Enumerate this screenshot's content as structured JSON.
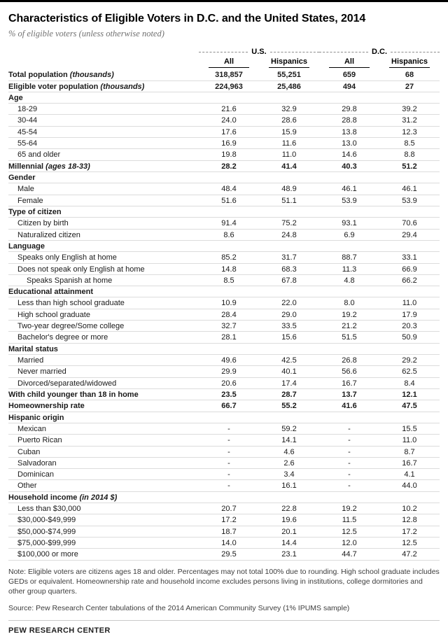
{
  "chart_data": {
    "type": "table",
    "title": "Characteristics of Eligible Voters in D.C. and the United States, 2014",
    "subtitle": "% of eligible voters (unless otherwise noted)",
    "group_headers": [
      "U.S.",
      "D.C."
    ],
    "columns": [
      "All",
      "Hispanics",
      "All",
      "Hispanics"
    ],
    "rows": [
      {
        "label": "Total population",
        "italic": "(thousands)",
        "style": "lead",
        "values": [
          "318,857",
          "55,251",
          "659",
          "68"
        ]
      },
      {
        "label": "Eligible voter population",
        "italic": "(thousands)",
        "style": "lead",
        "values": [
          "224,963",
          "25,486",
          "494",
          "27"
        ]
      },
      {
        "label": "Age",
        "style": "section"
      },
      {
        "label": "18-29",
        "style": "item",
        "values": [
          "21.6",
          "32.9",
          "29.8",
          "39.2"
        ]
      },
      {
        "label": "30-44",
        "style": "item",
        "values": [
          "24.0",
          "28.6",
          "28.8",
          "31.2"
        ]
      },
      {
        "label": "45-54",
        "style": "item",
        "values": [
          "17.6",
          "15.9",
          "13.8",
          "12.3"
        ]
      },
      {
        "label": "55-64",
        "style": "item",
        "values": [
          "16.9",
          "11.6",
          "13.0",
          "8.5"
        ]
      },
      {
        "label": "65 and older",
        "style": "item",
        "values": [
          "19.8",
          "11.0",
          "14.6",
          "8.8"
        ]
      },
      {
        "label": "Millennial",
        "italic": "(ages 18-33)",
        "style": "lead",
        "values": [
          "28.2",
          "41.4",
          "40.3",
          "51.2"
        ]
      },
      {
        "label": "Gender",
        "style": "section"
      },
      {
        "label": "Male",
        "style": "item",
        "values": [
          "48.4",
          "48.9",
          "46.1",
          "46.1"
        ]
      },
      {
        "label": "Female",
        "style": "item",
        "values": [
          "51.6",
          "51.1",
          "53.9",
          "53.9"
        ]
      },
      {
        "label": "Type of citizen",
        "style": "section"
      },
      {
        "label": "Citizen by birth",
        "style": "item",
        "values": [
          "91.4",
          "75.2",
          "93.1",
          "70.6"
        ]
      },
      {
        "label": "Naturalized citizen",
        "style": "item",
        "values": [
          "8.6",
          "24.8",
          "6.9",
          "29.4"
        ]
      },
      {
        "label": "Language",
        "style": "section"
      },
      {
        "label": "Speaks only English at home",
        "style": "item",
        "values": [
          "85.2",
          "31.7",
          "88.7",
          "33.1"
        ]
      },
      {
        "label": "Does not speak only English at home",
        "style": "item",
        "values": [
          "14.8",
          "68.3",
          "11.3",
          "66.9"
        ]
      },
      {
        "label": "Speaks Spanish at home",
        "style": "item2",
        "values": [
          "8.5",
          "67.8",
          "4.8",
          "66.2"
        ]
      },
      {
        "label": "Educational attainment",
        "style": "section"
      },
      {
        "label": "Less than high school graduate",
        "style": "item",
        "values": [
          "10.9",
          "22.0",
          "8.0",
          "11.0"
        ]
      },
      {
        "label": "High school graduate",
        "style": "item",
        "values": [
          "28.4",
          "29.0",
          "19.2",
          "17.9"
        ]
      },
      {
        "label": "Two-year degree/Some college",
        "style": "item",
        "values": [
          "32.7",
          "33.5",
          "21.2",
          "20.3"
        ]
      },
      {
        "label": "Bachelor's degree or more",
        "style": "item",
        "values": [
          "28.1",
          "15.6",
          "51.5",
          "50.9"
        ]
      },
      {
        "label": "Marital status",
        "style": "section"
      },
      {
        "label": "Married",
        "style": "item",
        "values": [
          "49.6",
          "42.5",
          "26.8",
          "29.2"
        ]
      },
      {
        "label": "Never married",
        "style": "item",
        "values": [
          "29.9",
          "40.1",
          "56.6",
          "62.5"
        ]
      },
      {
        "label": "Divorced/separated/widowed",
        "style": "item",
        "values": [
          "20.6",
          "17.4",
          "16.7",
          "8.4"
        ]
      },
      {
        "label": "With child younger than 18 in home",
        "style": "lead",
        "values": [
          "23.5",
          "28.7",
          "13.7",
          "12.1"
        ]
      },
      {
        "label": "Homeownership rate",
        "style": "lead",
        "values": [
          "66.7",
          "55.2",
          "41.6",
          "47.5"
        ]
      },
      {
        "label": "Hispanic origin",
        "style": "section"
      },
      {
        "label": "Mexican",
        "style": "item",
        "values": [
          "-",
          "59.2",
          "-",
          "15.5"
        ]
      },
      {
        "label": "Puerto Rican",
        "style": "item",
        "values": [
          "-",
          "14.1",
          "-",
          "11.0"
        ]
      },
      {
        "label": "Cuban",
        "style": "item",
        "values": [
          "-",
          "4.6",
          "-",
          "8.7"
        ]
      },
      {
        "label": "Salvadoran",
        "style": "item",
        "values": [
          "-",
          "2.6",
          "-",
          "16.7"
        ]
      },
      {
        "label": "Dominican",
        "style": "item",
        "values": [
          "-",
          "3.4",
          "-",
          "4.1"
        ]
      },
      {
        "label": "Other",
        "style": "item",
        "values": [
          "-",
          "16.1",
          "-",
          "44.0"
        ]
      },
      {
        "label": "Household income",
        "italic": "(in 2014 $)",
        "style": "section"
      },
      {
        "label": "Less than $30,000",
        "style": "item",
        "values": [
          "20.7",
          "22.8",
          "19.2",
          "10.2"
        ]
      },
      {
        "label": "$30,000-$49,999",
        "style": "item",
        "values": [
          "17.2",
          "19.6",
          "11.5",
          "12.8"
        ]
      },
      {
        "label": "$50,000-$74,999",
        "style": "item",
        "values": [
          "18.7",
          "20.1",
          "12.5",
          "17.2"
        ]
      },
      {
        "label": "$75,000-$99,999",
        "style": "item",
        "values": [
          "14.0",
          "14.4",
          "12.0",
          "12.5"
        ]
      },
      {
        "label": "$100,000 or more",
        "style": "item",
        "values": [
          "29.5",
          "23.1",
          "44.7",
          "47.2"
        ]
      }
    ]
  },
  "footer": {
    "note": "Note: Eligible voters are citizens ages 18 and older. Percentages may not total 100% due to rounding. High school graduate includes GEDs or equivalent. Homeownership rate and household income excludes persons living in institutions, college dormitories and other group quarters.",
    "source": "Source: Pew Research Center tabulations of the 2014 American Community Survey (1% IPUMS sample)",
    "brand": "PEW RESEARCH CENTER"
  }
}
